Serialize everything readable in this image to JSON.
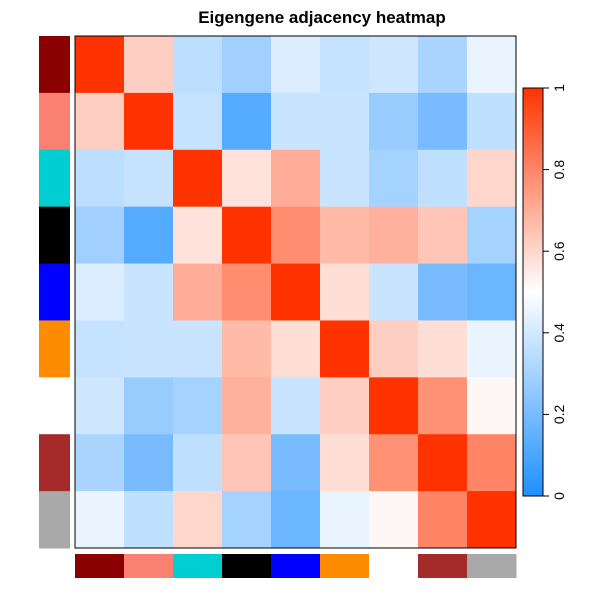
{
  "chart_data": {
    "type": "heatmap",
    "title": "Eigengene adjacency heatmap",
    "modules": [
      "darkred",
      "salmon",
      "darkturquoise",
      "black",
      "blue",
      "darkorange",
      "white",
      "brown",
      "darkgrey"
    ],
    "module_colors": [
      "#8b0000",
      "#fa8072",
      "#00ced1",
      "#000000",
      "#0000ff",
      "#ff8c00",
      "#ffffff",
      "#a52a2a",
      "#a9a9a9"
    ],
    "matrix": [
      [
        1.0,
        0.62,
        0.35,
        0.29,
        0.42,
        0.37,
        0.39,
        0.31,
        0.45
      ],
      [
        0.62,
        1.0,
        0.37,
        0.12,
        0.38,
        0.38,
        0.27,
        0.2,
        0.36
      ],
      [
        0.35,
        0.37,
        1.0,
        0.57,
        0.7,
        0.38,
        0.3,
        0.36,
        0.6
      ],
      [
        0.29,
        0.12,
        0.57,
        1.0,
        0.78,
        0.67,
        0.69,
        0.64,
        0.3
      ],
      [
        0.42,
        0.38,
        0.7,
        0.78,
        1.0,
        0.58,
        0.38,
        0.2,
        0.17
      ],
      [
        0.37,
        0.38,
        0.38,
        0.67,
        0.58,
        1.0,
        0.62,
        0.58,
        0.45
      ],
      [
        0.39,
        0.27,
        0.3,
        0.69,
        0.38,
        0.62,
        1.0,
        0.77,
        0.52
      ],
      [
        0.31,
        0.2,
        0.36,
        0.64,
        0.2,
        0.58,
        0.77,
        1.0,
        0.8
      ],
      [
        0.45,
        0.36,
        0.6,
        0.3,
        0.17,
        0.45,
        0.52,
        0.8,
        1.0
      ]
    ],
    "color_scale": {
      "range": [
        0,
        1
      ],
      "low": "#1e90ff",
      "mid": "#ffffff",
      "high": "#ff3300",
      "ticks": [
        "0",
        "0.2",
        "0.4",
        "0.6",
        "0.8",
        "1"
      ]
    },
    "legend_position": "right",
    "grid": false
  }
}
